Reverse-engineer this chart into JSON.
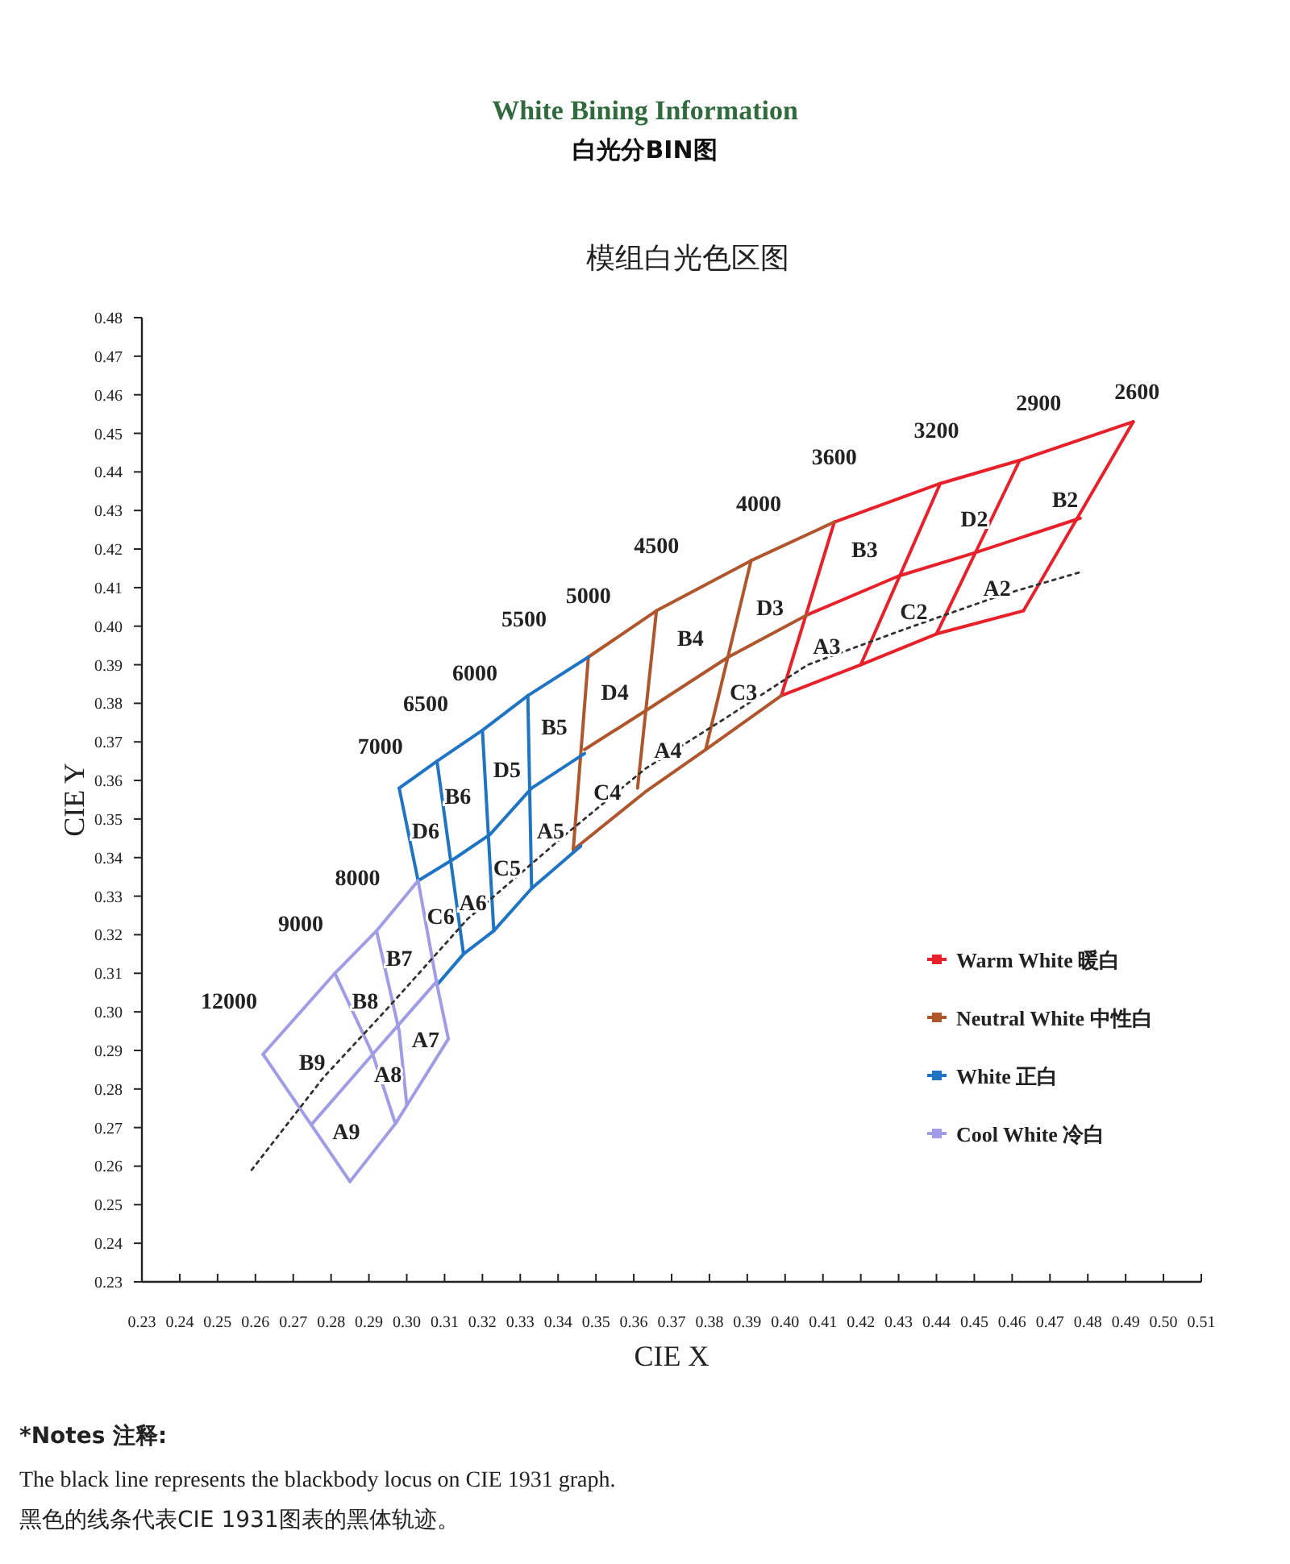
{
  "chart_data": {
    "type": "line",
    "title": "White Bining Information",
    "subtitle": "白光分BIN图",
    "xlabel": "CIE X",
    "ylabel": "CIE Y",
    "xlim": [
      0.23,
      0.51
    ],
    "ylim": [
      0.23,
      0.48
    ],
    "xticks": [
      0.23,
      0.24,
      0.25,
      0.26,
      0.27,
      0.28,
      0.29,
      {
        "value": 0.3,
        "label": "0.30"
      },
      0.31,
      0.32,
      0.33,
      0.34,
      0.35,
      0.36,
      0.37,
      0.38,
      0.39,
      {
        "value": 0.4,
        "label": "0.40"
      },
      0.41,
      0.42,
      0.43,
      0.44,
      0.45,
      0.46,
      0.47,
      0.48,
      0.49,
      {
        "value": 0.5,
        "label": "0.50"
      },
      0.51
    ],
    "yticks": [
      0.23,
      0.24,
      0.25,
      0.26,
      0.27,
      0.28,
      0.29,
      {
        "value": 0.3,
        "label": "0.30"
      },
      0.31,
      0.32,
      0.33,
      0.34,
      0.35,
      0.36,
      0.37,
      0.38,
      0.39,
      {
        "value": 0.4,
        "label": "0.40"
      },
      0.41,
      0.42,
      0.43,
      0.44,
      0.45,
      0.46,
      0.47,
      0.48
    ],
    "grid": false,
    "legend": "bottom right",
    "marker": "none",
    "line_style": "solid",
    "series": [
      {
        "name": "Warm White 暖白",
        "color": "#e8202a",
        "x": [
          0.413,
          0.441,
          0.462,
          0.492
        ],
        "values": [
          0.427,
          0.437,
          0.443,
          0.453
        ]
      },
      {
        "color": "#e8202a",
        "x": [
          0.492,
          0.463
        ],
        "values": [
          0.453,
          0.404
        ]
      },
      {
        "color": "#e8202a",
        "x": [
          0.399,
          0.42,
          0.44,
          0.463
        ],
        "values": [
          0.382,
          0.39,
          0.398,
          0.404
        ]
      },
      {
        "color": "#e8202a",
        "x": [
          0.413,
          0.399
        ],
        "values": [
          0.427,
          0.382
        ]
      },
      {
        "color": "#e8202a",
        "x": [
          0.406,
          0.43,
          0.45,
          0.478
        ],
        "values": [
          0.403,
          0.413,
          0.419,
          0.428
        ]
      },
      {
        "color": "#e8202a",
        "x": [
          0.441,
          0.42
        ],
        "values": [
          0.437,
          0.39
        ]
      },
      {
        "color": "#e8202a",
        "x": [
          0.462,
          0.44
        ],
        "values": [
          0.443,
          0.398
        ]
      },
      {
        "name": "Neutral White 中性白",
        "color": "#b0562c",
        "x": [
          0.348,
          0.366,
          0.391,
          0.413
        ],
        "values": [
          0.392,
          0.404,
          0.417,
          0.427
        ]
      },
      {
        "color": "#b0562c",
        "x": [
          0.347,
          0.363,
          0.385,
          0.406
        ],
        "values": [
          0.368,
          0.378,
          0.392,
          0.403
        ]
      },
      {
        "color": "#b0562c",
        "x": [
          0.344,
          0.363,
          0.379,
          0.399
        ],
        "values": [
          0.342,
          0.357,
          0.368,
          0.382
        ]
      },
      {
        "color": "#b0562c",
        "x": [
          0.348,
          0.344
        ],
        "values": [
          0.392,
          0.342
        ]
      },
      {
        "color": "#b0562c",
        "x": [
          0.366,
          0.361
        ],
        "values": [
          0.404,
          0.358
        ]
      },
      {
        "color": "#b0562c",
        "x": [
          0.391,
          0.379
        ],
        "values": [
          0.417,
          0.368
        ]
      },
      {
        "name": "White 正白",
        "color": "#1f74c4",
        "x": [
          0.298,
          0.308,
          0.32,
          0.332,
          0.348
        ],
        "values": [
          0.358,
          0.365,
          0.373,
          0.382,
          0.392
        ]
      },
      {
        "color": "#1f74c4",
        "x": [
          0.303,
          0.313,
          0.322,
          0.333,
          0.347
        ],
        "values": [
          0.334,
          0.34,
          0.346,
          0.358,
          0.367
        ]
      },
      {
        "color": "#1f74c4",
        "x": [
          0.308,
          0.315,
          0.323,
          0.333,
          0.346
        ],
        "values": [
          0.307,
          0.315,
          0.321,
          0.332,
          0.343
        ]
      },
      {
        "color": "#1f74c4",
        "x": [
          0.298,
          0.303
        ],
        "values": [
          0.358,
          0.334
        ]
      },
      {
        "color": "#1f74c4",
        "x": [
          0.308,
          0.315
        ],
        "values": [
          0.365,
          0.315
        ]
      },
      {
        "color": "#1f74c4",
        "x": [
          0.32,
          0.323
        ],
        "values": [
          0.373,
          0.321
        ]
      },
      {
        "color": "#1f74c4",
        "x": [
          0.332,
          0.333
        ],
        "values": [
          0.382,
          0.332
        ]
      },
      {
        "name": "Cool White 冷白",
        "color": "#a09ce6",
        "x": [
          0.262,
          0.281,
          0.292,
          0.303
        ],
        "values": [
          0.289,
          0.31,
          0.321,
          0.334
        ]
      },
      {
        "color": "#a09ce6",
        "x": [
          0.303,
          0.308,
          0.311
        ],
        "values": [
          0.334,
          0.307,
          0.293
        ]
      },
      {
        "color": "#a09ce6",
        "x": [
          0.285,
          0.297,
          0.311
        ],
        "values": [
          0.256,
          0.271,
          0.293
        ]
      },
      {
        "color": "#a09ce6",
        "x": [
          0.262,
          0.285
        ],
        "values": [
          0.289,
          0.256
        ]
      },
      {
        "color": "#a09ce6",
        "x": [
          0.275,
          0.291,
          0.308
        ],
        "values": [
          0.271,
          0.289,
          0.308
        ]
      },
      {
        "color": "#a09ce6",
        "x": [
          0.281,
          0.291,
          0.297
        ],
        "values": [
          0.31,
          0.289,
          0.271
        ]
      },
      {
        "color": "#a09ce6",
        "x": [
          0.292,
          0.298,
          0.3
        ],
        "values": [
          0.321,
          0.295,
          0.276
        ]
      },
      {
        "color": "#333333",
        "line_style": "dotted",
        "x": [
          0.259,
          0.278,
          0.295,
          0.316,
          0.342,
          0.363,
          0.384,
          0.406,
          0.431,
          0.457,
          0.478
        ],
        "values": [
          0.259,
          0.283,
          0.301,
          0.324,
          0.346,
          0.363,
          0.376,
          0.39,
          0.399,
          0.408,
          0.414
        ]
      }
    ],
    "annotations": [
      "模组白光色区图",
      "*Notes 注释:",
      "The black line represents the blackbody locus on CIE 1931 graph.",
      "黑色的线条代表CIE 1931图表的黑体轨迹。",
      "12000",
      "9000",
      "8000",
      "7000",
      "6500",
      "6000",
      "5500",
      "5000",
      "4500",
      "4000",
      "3600",
      "3200",
      "2900",
      "2600",
      "B9",
      "A9",
      "A8",
      "B8",
      "A7",
      "B7",
      "C6",
      "A6",
      "D6",
      "B6",
      "C5",
      "D5",
      "B5",
      "A5",
      "C4",
      "D4",
      "A4",
      "B4",
      "C3",
      "D3",
      "A3",
      "B3",
      "C2",
      "D2",
      "A2",
      "B2"
    ]
  }
}
